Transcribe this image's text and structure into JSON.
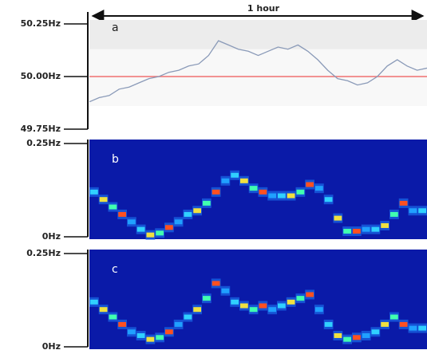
{
  "chart_data": [
    {
      "type": "line",
      "label": "a",
      "annotation": "1 hour",
      "color": "#8a9ab8",
      "reference_line": 50,
      "reference_color": "#f07070",
      "band": [
        49.86,
        50.13
      ],
      "ylim": [
        49.75,
        50.25
      ],
      "yticks": [
        {
          "value": 50.25,
          "label": "50.25Hz"
        },
        {
          "value": 50,
          "label": "50.00Hz"
        },
        {
          "value": 49.75,
          "label": "49.75Hz"
        }
      ],
      "values": [
        49.88,
        49.9,
        49.91,
        49.94,
        49.95,
        49.97,
        49.99,
        50.0,
        50.02,
        50.03,
        50.05,
        50.06,
        50.1,
        50.17,
        50.15,
        50.13,
        50.12,
        50.1,
        50.12,
        50.14,
        50.13,
        50.15,
        50.12,
        50.08,
        50.03,
        49.99,
        49.98,
        49.96,
        49.97,
        50.0,
        50.05,
        50.08,
        50.05,
        50.03,
        50.04
      ]
    },
    {
      "type": "spectrogram",
      "label": "b",
      "background": "#0a1aa8",
      "colors": [
        "#30d0ff",
        "#f0e040",
        "#40ffb0",
        "#ff5020",
        "#20a0ff"
      ],
      "ylim": [
        0,
        0.25
      ],
      "yticks": [
        {
          "value": 0.25,
          "label": "0.25Hz"
        },
        {
          "value": 0,
          "label": "0Hz"
        }
      ],
      "values": [
        0.12,
        0.1,
        0.08,
        0.06,
        0.04,
        0.02,
        0.005,
        0.01,
        0.025,
        0.04,
        0.06,
        0.07,
        0.09,
        0.12,
        0.15,
        0.165,
        0.15,
        0.13,
        0.12,
        0.11,
        0.11,
        0.11,
        0.12,
        0.14,
        0.13,
        0.1,
        0.05,
        0.015,
        0.015,
        0.02,
        0.02,
        0.03,
        0.06,
        0.09,
        0.07,
        0.07
      ]
    },
    {
      "type": "spectrogram",
      "label": "c",
      "background": "#0a1aa8",
      "colors": [
        "#30d0ff",
        "#f0e040",
        "#40ffb0",
        "#ff5020",
        "#20a0ff"
      ],
      "ylim": [
        0,
        0.25
      ],
      "yticks": [
        {
          "value": 0.25,
          "label": "0.25Hz"
        },
        {
          "value": 0,
          "label": "0Hz"
        }
      ],
      "values": [
        0.12,
        0.1,
        0.08,
        0.06,
        0.04,
        0.03,
        0.02,
        0.025,
        0.04,
        0.06,
        0.08,
        0.1,
        0.13,
        0.17,
        0.15,
        0.12,
        0.11,
        0.1,
        0.11,
        0.1,
        0.11,
        0.12,
        0.13,
        0.14,
        0.1,
        0.06,
        0.03,
        0.02,
        0.025,
        0.03,
        0.04,
        0.06,
        0.08,
        0.06,
        0.05,
        0.05
      ]
    }
  ]
}
